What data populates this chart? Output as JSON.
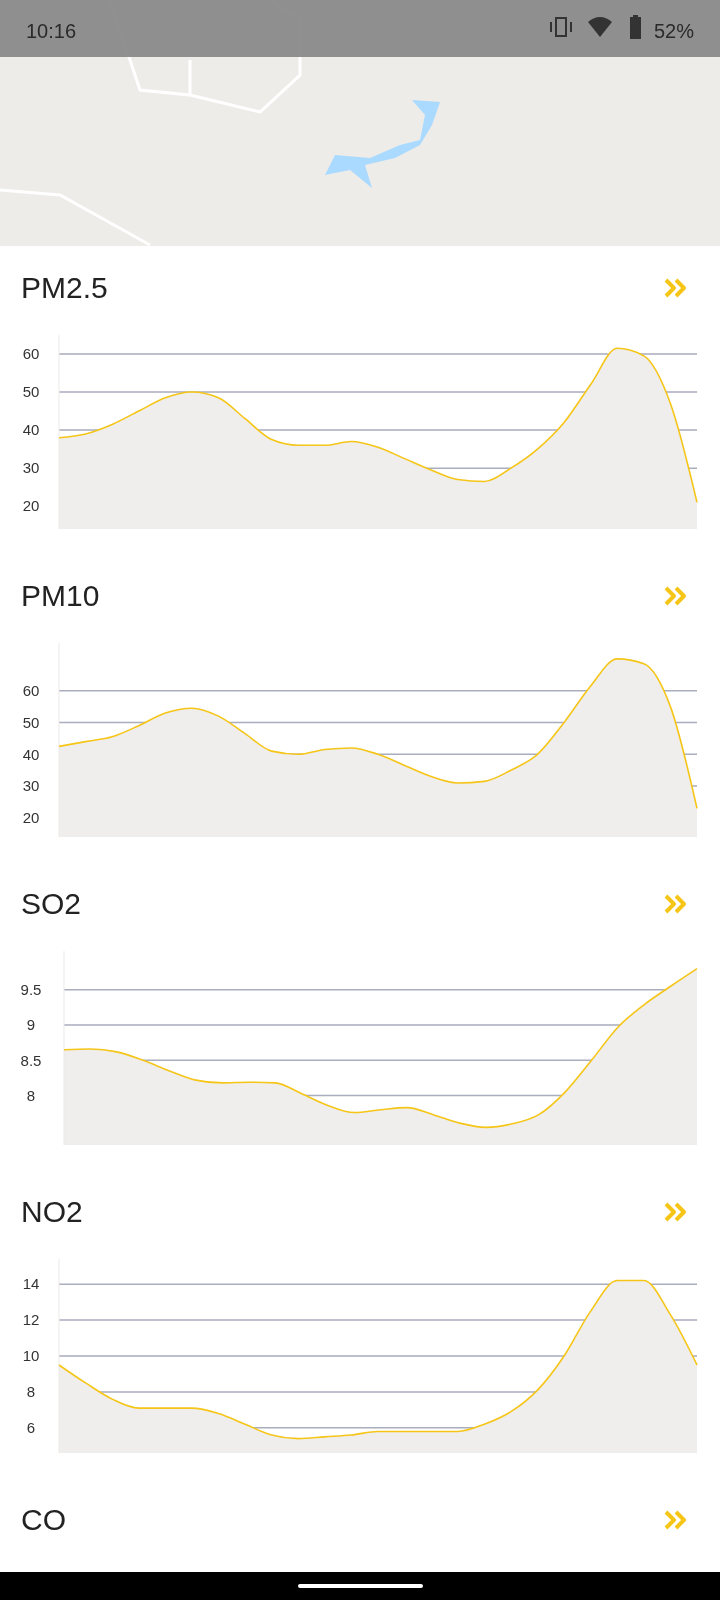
{
  "chart_data": [
    {
      "type": "other",
      "annotations": [
        "10:16",
        "52%"
      ]
    },
    {
      "type": "area",
      "title": "PM2.5",
      "categories": [
        null,
        null,
        null,
        null,
        null,
        null,
        null,
        null,
        null,
        null,
        null,
        null,
        null,
        null,
        null,
        null,
        null,
        null,
        null,
        null,
        null,
        null,
        null,
        null,
        null
      ],
      "values": [
        38,
        39,
        41.5,
        45,
        48.5,
        50,
        48.5,
        43,
        37.5,
        36,
        36,
        37,
        35.5,
        32.5,
        29.5,
        27,
        26.5,
        30,
        35,
        42,
        52,
        61.5,
        59.5,
        47,
        21
      ],
      "color": "#f5c518",
      "ylim": [
        14,
        65
      ],
      "yticks": [
        20,
        30,
        40,
        50,
        60
      ],
      "grid": "y"
    },
    {
      "type": "area",
      "title": "PM10",
      "categories": [
        null,
        null,
        null,
        null,
        null,
        null,
        null,
        null,
        null,
        null,
        null,
        null,
        null,
        null,
        null,
        null,
        null,
        null,
        null,
        null,
        null,
        null,
        null,
        null,
        null
      ],
      "values": [
        42.5,
        44,
        45.5,
        49,
        53,
        54.5,
        52,
        46.5,
        41,
        40,
        41.5,
        42,
        40,
        36.5,
        33,
        31,
        31.5,
        35,
        40,
        50,
        61.5,
        70,
        68.5,
        55,
        23
      ],
      "color": "#f5c518",
      "ylim": [
        14,
        75
      ],
      "yticks": [
        20,
        30,
        40,
        50,
        60
      ],
      "grid": "y"
    },
    {
      "type": "area",
      "title": "SO2",
      "categories": [
        null,
        null,
        null,
        null,
        null,
        null,
        null,
        null,
        null,
        null,
        null,
        null,
        null,
        null,
        null,
        null,
        null,
        null,
        null,
        null,
        null,
        null,
        null,
        null,
        null
      ],
      "values": [
        8.65,
        8.66,
        8.62,
        8.5,
        8.35,
        8.22,
        8.18,
        8.19,
        8.18,
        8.03,
        7.86,
        7.76,
        7.8,
        7.83,
        7.73,
        7.61,
        7.55,
        7.6,
        7.73,
        8.05,
        8.5,
        8.97,
        9.29,
        9.55,
        9.8
      ],
      "color": "#f5c518",
      "ylim": [
        7.3,
        10.05
      ],
      "yticks": [
        8,
        8.5,
        9,
        9.5
      ],
      "grid": "y"
    },
    {
      "type": "area",
      "title": "NO2",
      "categories": [
        null,
        null,
        null,
        null,
        null,
        null,
        null,
        null,
        null,
        null,
        null,
        null,
        null,
        null,
        null,
        null,
        null,
        null,
        null,
        null,
        null,
        null,
        null,
        null,
        null
      ],
      "values": [
        9.5,
        8.5,
        7.6,
        7.1,
        7.1,
        7.1,
        6.8,
        6.2,
        5.6,
        5.4,
        5.5,
        5.6,
        5.8,
        5.8,
        5.8,
        5.8,
        6.2,
        6.9,
        8.1,
        10,
        12.5,
        14.2,
        14.2,
        12.3,
        9.5
      ],
      "color": "#f5c518",
      "ylim": [
        4.6,
        15.4
      ],
      "yticks": [
        6,
        8,
        10,
        12,
        14
      ],
      "grid": "y"
    },
    {
      "type": "other",
      "title": "CO"
    }
  ]
}
